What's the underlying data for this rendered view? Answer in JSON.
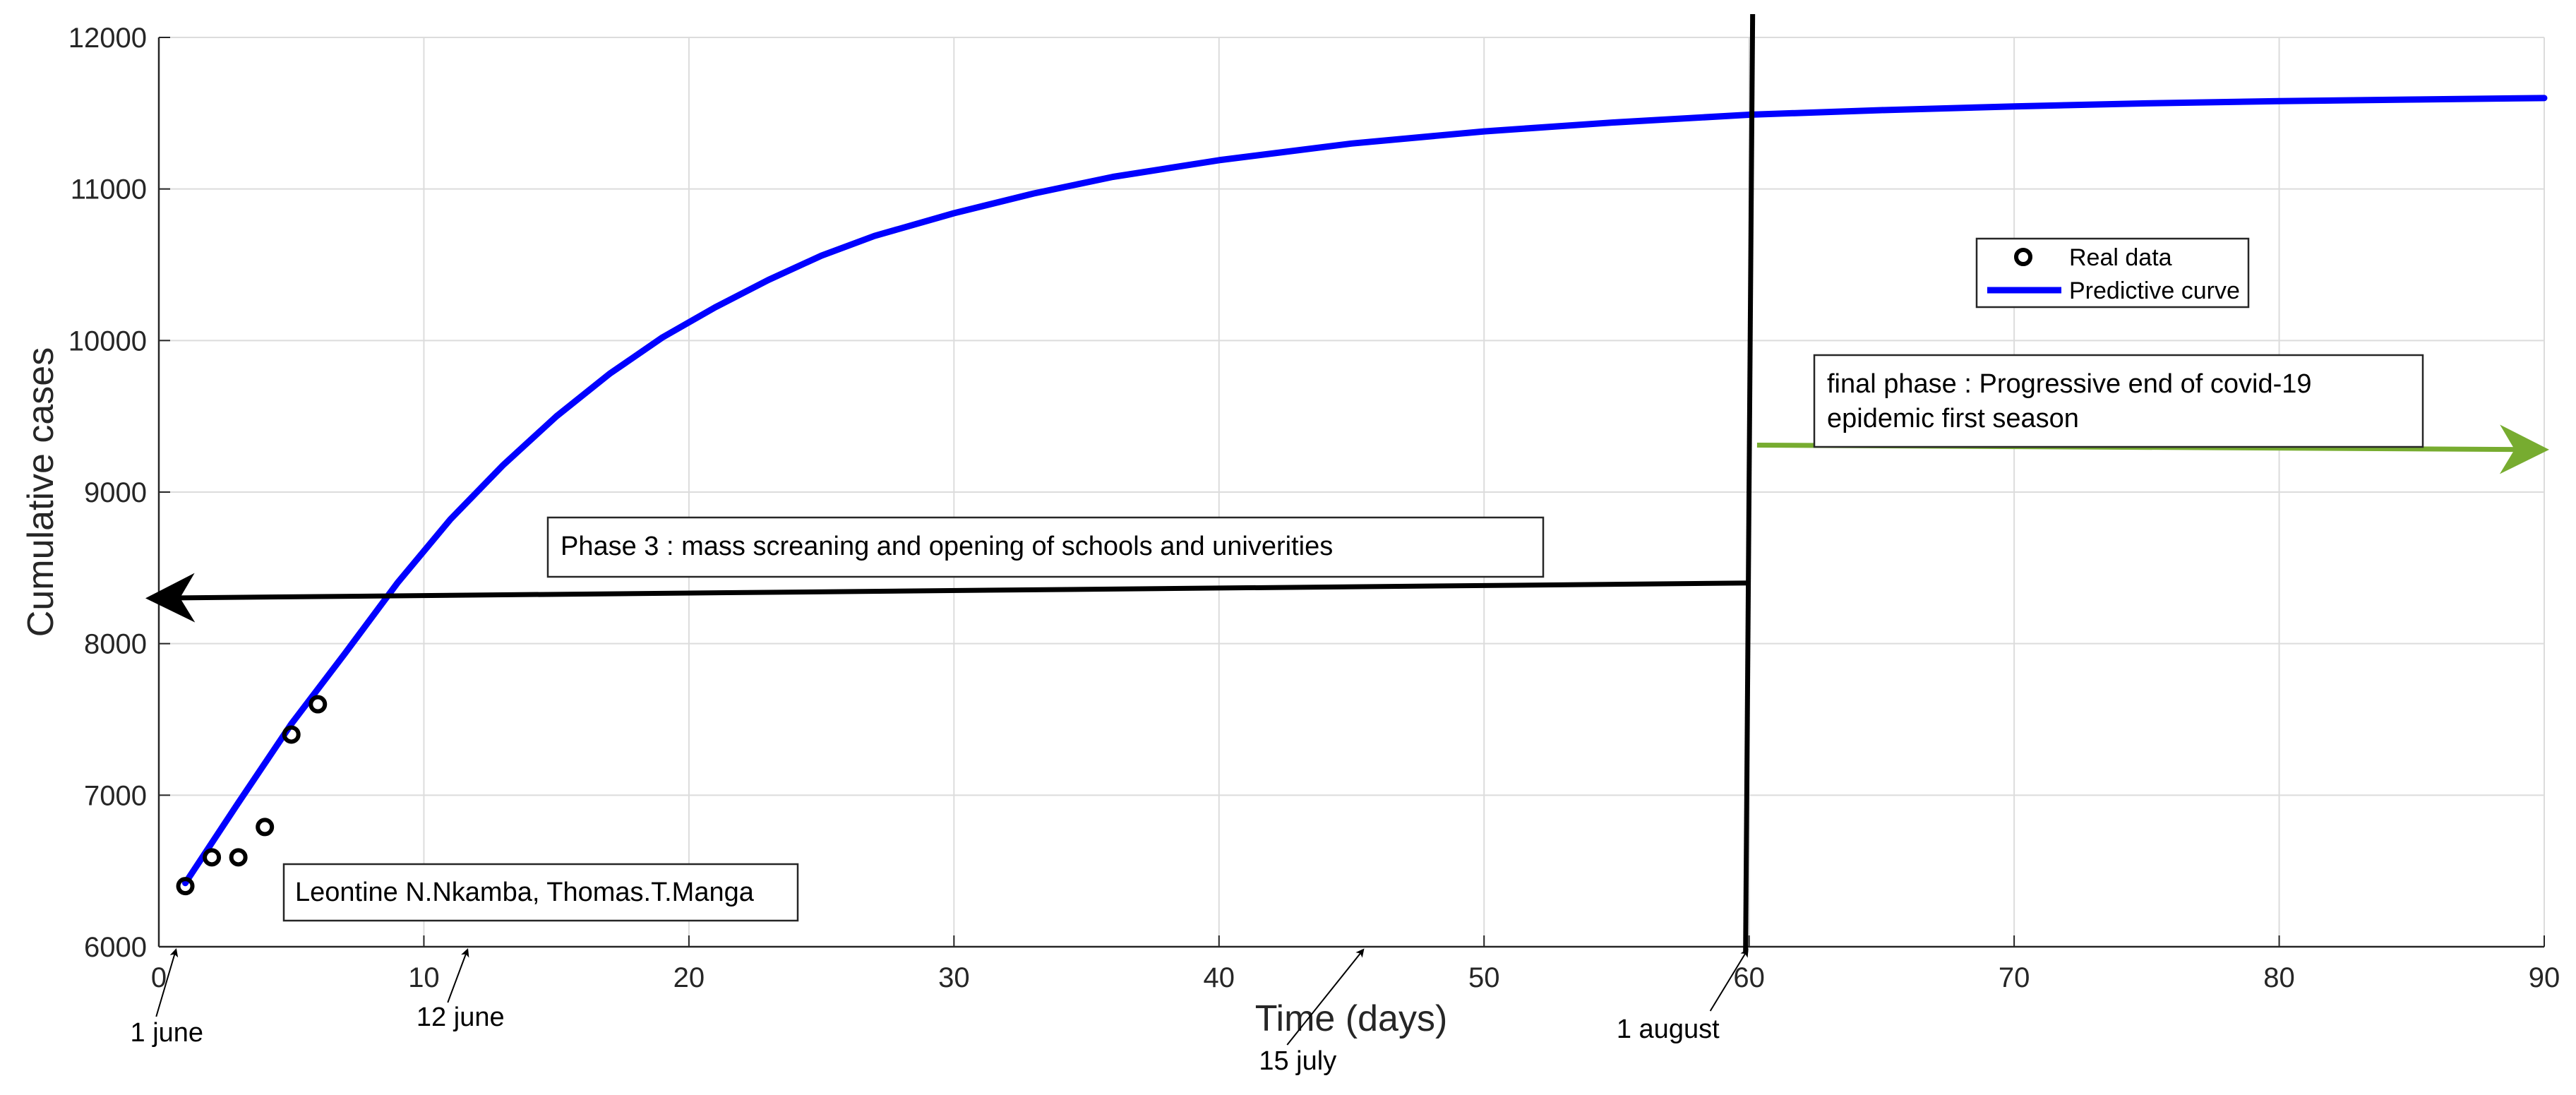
{
  "chart_data": {
    "type": "line",
    "xlabel": "Time (days)",
    "ylabel": "Cumulative  cases",
    "xlim": [
      0,
      90
    ],
    "ylim": [
      6000,
      12000
    ],
    "xticks": [
      0,
      10,
      20,
      30,
      40,
      50,
      60,
      70,
      80,
      90
    ],
    "yticks": [
      6000,
      7000,
      8000,
      9000,
      10000,
      11000,
      12000
    ],
    "grid": true,
    "legend_position": "upper-right",
    "colors": {
      "real_data": "#000000",
      "predictive_curve": "#0000ff",
      "phase3_arrow": "#000000",
      "final_arrow": "#77ac30",
      "divider": "#000000"
    },
    "series": [
      {
        "name": "Real data",
        "style": "marker-circle",
        "x": [
          1,
          2,
          3,
          4,
          5,
          6
        ],
        "y": [
          6400,
          6590,
          6590,
          6790,
          7400,
          7600
        ]
      },
      {
        "name": "Predictive curve",
        "style": "line",
        "x": [
          1,
          3,
          5,
          7,
          9,
          11,
          13,
          15,
          17,
          19,
          21,
          23,
          25,
          27,
          30,
          33,
          36,
          40,
          45,
          50,
          55,
          60,
          65,
          70,
          75,
          80,
          85,
          90
        ],
        "y": [
          6420,
          6950,
          7470,
          7930,
          8400,
          8820,
          9180,
          9500,
          9780,
          10020,
          10220,
          10400,
          10560,
          10690,
          10840,
          10970,
          11080,
          11190,
          11300,
          11380,
          11440,
          11490,
          11520,
          11545,
          11565,
          11580,
          11590,
          11600
        ]
      }
    ],
    "annotations": {
      "phase3": {
        "text": "Phase 3 : mass screaning and opening of schools and univerities",
        "arrow_from": [
          60,
          8400
        ],
        "arrow_to": [
          0,
          8300
        ]
      },
      "final_phase": {
        "line1": "final phase : Progressive end  of covid-19",
        "line2": "epidemic first season",
        "arrow_from": [
          60.3,
          9310
        ],
        "arrow_to": [
          90,
          9280
        ]
      },
      "authors": "Leontine N.Nkamba, Thomas.T.Manga",
      "divider_x": 60,
      "date_markers": [
        {
          "label": "1 june",
          "x": 0.7
        },
        {
          "label": "12 june",
          "x": 11.7
        },
        {
          "label": "15 july",
          "x": 45.5
        },
        {
          "label": "1 august",
          "x": 60
        }
      ]
    }
  }
}
